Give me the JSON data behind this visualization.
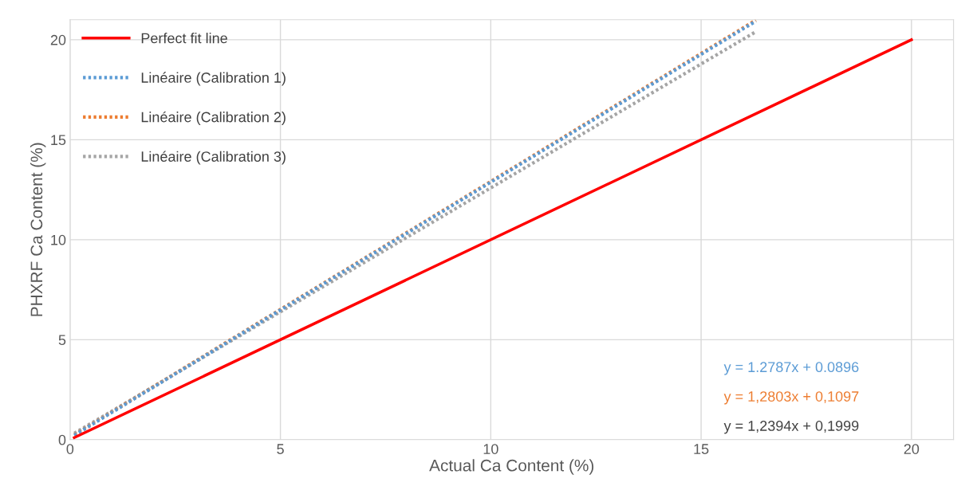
{
  "chart_data": {
    "type": "line",
    "xlabel": "Actual Ca Content (%)",
    "ylabel": "PHXRF Ca Content (%)",
    "xlim": [
      0,
      21
    ],
    "ylim": [
      0,
      21
    ],
    "xticks": [
      0,
      5,
      10,
      15,
      20
    ],
    "yticks": [
      0,
      5,
      10,
      15,
      20
    ],
    "grid": true,
    "legend": "top left",
    "marker": "none",
    "series": [
      {
        "name": "Perfect fit line",
        "color": "#ff0000",
        "line_style": "solid",
        "x": [
          0.1,
          20
        ],
        "values": [
          0.1,
          20
        ]
      },
      {
        "name": "Linéaire (Calibration 1)",
        "color": "#5b9bd5",
        "line_style": "dotted",
        "x": [
          0.1,
          16.3
        ],
        "values": [
          0.22,
          20.93
        ]
      },
      {
        "name": "Linéaire (Calibration 2)",
        "color": "#ed7d31",
        "line_style": "dotted",
        "x": [
          0.1,
          16.3
        ],
        "values": [
          0.24,
          20.98
        ]
      },
      {
        "name": "Linéaire (Calibration 3)",
        "color": "#a5a5a5",
        "line_style": "dotted",
        "x": [
          0.1,
          16.3
        ],
        "values": [
          0.32,
          20.4
        ]
      }
    ],
    "annotations": [
      "y = 1.2787x + 0.0896",
      "y = 1,2803x + 0,1097",
      "y = 1,2394x + 0,1999"
    ]
  }
}
